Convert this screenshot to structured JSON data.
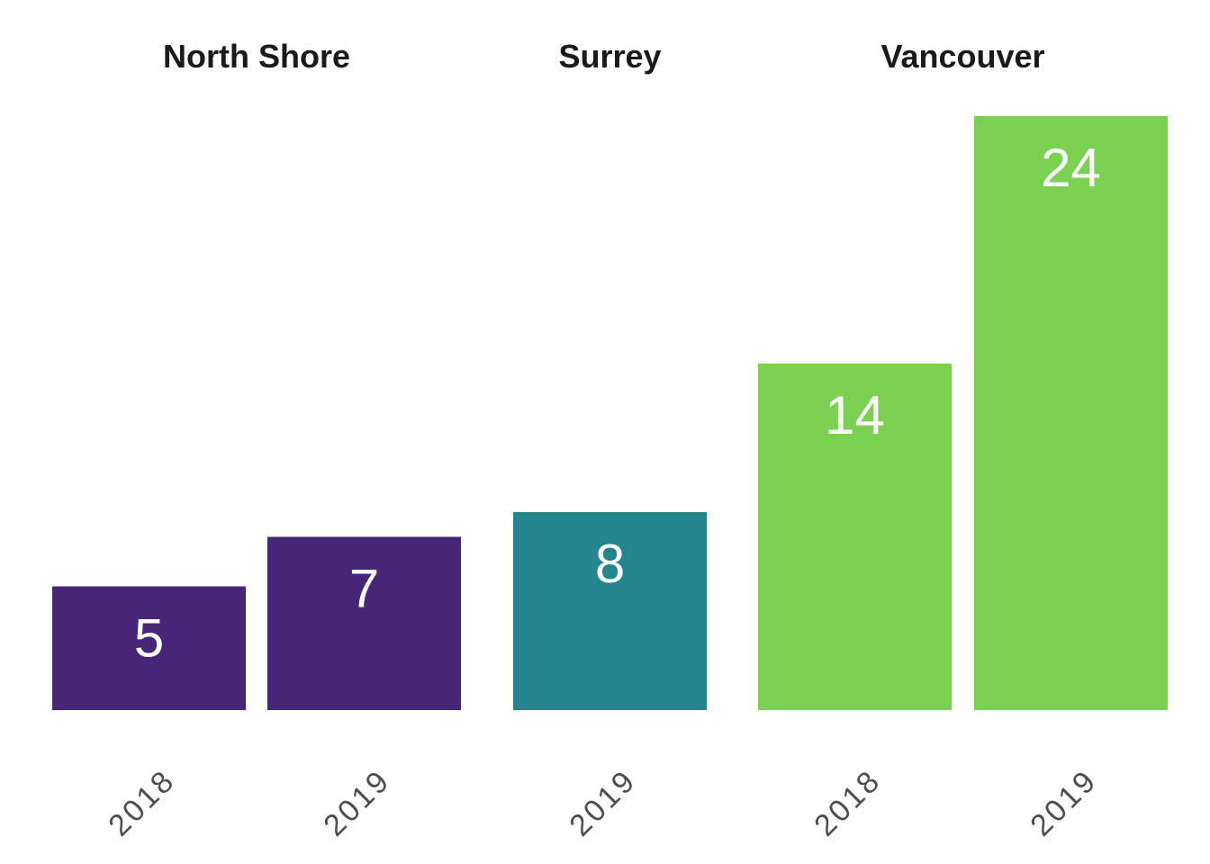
{
  "chart_data": {
    "type": "bar",
    "facets": [
      {
        "name": "North Shore",
        "color": "#482677",
        "bars": [
          {
            "x": "2018",
            "value": 5
          },
          {
            "x": "2019",
            "value": 7
          }
        ]
      },
      {
        "name": "Surrey",
        "color": "#25858E",
        "bars": [
          {
            "x": "2019",
            "value": 8
          }
        ]
      },
      {
        "name": "Vancouver",
        "color": "#7AD151",
        "bars": [
          {
            "x": "2018",
            "value": 14
          },
          {
            "x": "2019",
            "value": 24
          }
        ]
      }
    ],
    "ylim": [
      0,
      24
    ],
    "grid": false,
    "legend": "none",
    "xlabel": "",
    "ylabel": "",
    "title": ""
  }
}
